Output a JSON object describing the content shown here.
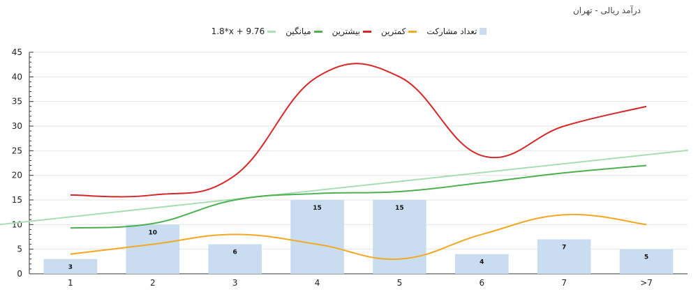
{
  "chart_data": {
    "type": "bar",
    "title": "درآمد ریالی - تهران",
    "categories": [
      "1",
      "2",
      "3",
      "4",
      "5",
      "6",
      "7",
      ">7"
    ],
    "ylim": [
      0,
      45
    ],
    "yticks": [
      0,
      5,
      10,
      15,
      20,
      25,
      30,
      35,
      40,
      45
    ],
    "grid": true,
    "legend_position": "top",
    "series": [
      {
        "name": "تعداد مشارکت",
        "type": "bar",
        "color": "#c9ddf0",
        "values": [
          3,
          10,
          6,
          15,
          15,
          4,
          7,
          5
        ]
      },
      {
        "name": "کمترین",
        "type": "line",
        "color": "#f5a623",
        "values": [
          4,
          6,
          8,
          6,
          3,
          8,
          12,
          10
        ]
      },
      {
        "name": "بیشترین",
        "type": "line",
        "color": "#d62728",
        "values": [
          16,
          16,
          20,
          40,
          40,
          24,
          30,
          34
        ]
      },
      {
        "name": "میانگین",
        "type": "line",
        "color": "#4caf50",
        "values": [
          9.3,
          10.2,
          15,
          16.3,
          16.7,
          18.5,
          20.5,
          22
        ]
      },
      {
        "name": "1.8*x + 9.76",
        "type": "trendline",
        "color": "#a8ddb5",
        "slope": 1.8,
        "intercept": 9.76
      }
    ]
  }
}
